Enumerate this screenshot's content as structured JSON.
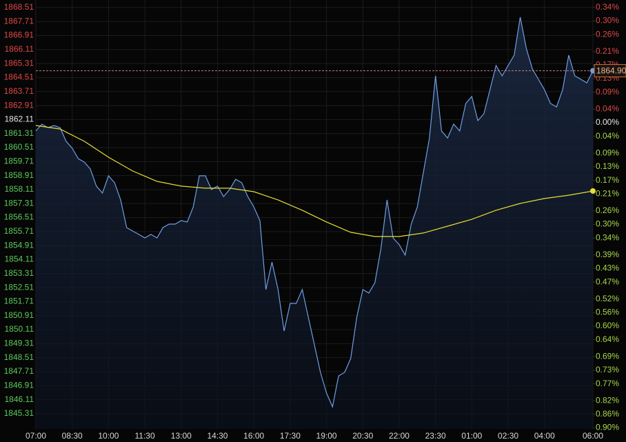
{
  "chart_data": {
    "type": "line",
    "x": [
      0,
      0.25,
      0.5,
      0.75,
      1,
      1.25,
      1.5,
      1.75,
      2,
      2.25,
      2.5,
      2.75,
      3,
      3.25,
      3.5,
      3.75,
      4,
      4.25,
      4.5,
      4.75,
      5,
      5.25,
      5.5,
      5.75,
      6,
      6.25,
      6.5,
      6.75,
      7,
      7.25,
      7.5,
      7.75,
      8,
      8.25,
      8.5,
      8.75,
      9,
      9.25,
      9.5,
      9.75,
      10,
      10.25,
      10.5,
      10.75,
      11,
      11.25,
      11.5,
      11.75,
      12,
      12.25,
      12.5,
      12.75,
      13,
      13.25,
      13.5,
      13.75,
      14,
      14.25,
      14.5,
      14.75,
      15,
      15.25,
      15.5,
      15.75,
      16,
      16.25,
      16.5,
      16.75,
      17,
      17.25,
      17.5,
      17.75,
      18,
      18.25,
      18.5,
      18.75,
      19,
      19.25,
      19.5,
      19.75,
      20,
      20.25,
      20.5,
      20.75,
      21,
      21.25,
      21.5,
      21.75,
      22,
      22.25,
      22.5,
      22.75,
      23
    ],
    "series": [
      {
        "color": "#6f9fe6",
        "values": [
          1861.46,
          1861.85,
          1861.65,
          1861.77,
          1861.65,
          1860.87,
          1860.47,
          1859.88,
          1859.68,
          1859.29,
          1858.31,
          1857.91,
          1858.9,
          1858.5,
          1857.52,
          1855.94,
          1855.74,
          1855.55,
          1855.35,
          1855.55,
          1855.35,
          1855.94,
          1856.14,
          1856.14,
          1856.34,
          1856.26,
          1857.12,
          1858.9,
          1858.9,
          1858.11,
          1858.31,
          1857.71,
          1858.11,
          1858.7,
          1858.5,
          1857.71,
          1857.12,
          1856.34,
          1852.4,
          1853.97,
          1852.4,
          1850.03,
          1851.61,
          1851.61,
          1852.4,
          1850.82,
          1849.25,
          1847.67,
          1846.49,
          1845.7,
          1847.47,
          1847.67,
          1848.46,
          1850.82,
          1852.4,
          1852.2,
          1852.79,
          1854.76,
          1857.52,
          1855.35,
          1854.96,
          1854.37,
          1856.14,
          1857.12,
          1859.09,
          1861.06,
          1864.61,
          1861.46,
          1861.06,
          1861.85,
          1861.46,
          1863.03,
          1863.43,
          1862.05,
          1862.44,
          1863.82,
          1865.2,
          1864.61,
          1865.2,
          1865.79,
          1867.96,
          1866.18,
          1865.0,
          1864.41,
          1863.82,
          1863.03,
          1862.83,
          1863.82,
          1865.79,
          1864.61,
          1864.41,
          1864.21,
          1864.9
        ]
      },
      {
        "color": "#e6e033",
        "x": [
          0,
          1,
          2,
          3,
          4,
          5,
          6,
          7,
          8,
          9,
          10,
          11,
          12,
          13,
          14,
          15,
          16,
          17,
          18,
          19,
          20,
          21,
          22,
          23
        ],
        "values": [
          1861.77,
          1861.57,
          1860.87,
          1859.96,
          1859.17,
          1858.58,
          1858.31,
          1858.19,
          1858.19,
          1857.99,
          1857.52,
          1856.93,
          1856.26,
          1855.67,
          1855.43,
          1855.43,
          1855.63,
          1856.02,
          1856.41,
          1856.93,
          1857.32,
          1857.6,
          1857.79,
          1858.03
        ]
      }
    ],
    "last_price": {
      "value": 1864.9,
      "label": "1864.90"
    },
    "xlim": [
      0,
      23
    ],
    "xticks": [
      {
        "value": 0,
        "label": "07:00"
      },
      {
        "value": 1.5,
        "label": "08:30"
      },
      {
        "value": 3,
        "label": "10:00"
      },
      {
        "value": 4.5,
        "label": "11:30"
      },
      {
        "value": 6,
        "label": "13:00"
      },
      {
        "value": 7.5,
        "label": "14:30"
      },
      {
        "value": 9,
        "label": "16:00"
      },
      {
        "value": 10.5,
        "label": "17:30"
      },
      {
        "value": 12,
        "label": "19:00"
      },
      {
        "value": 13.5,
        "label": "20:30"
      },
      {
        "value": 15,
        "label": "22:00"
      },
      {
        "value": 16.5,
        "label": "23:30"
      },
      {
        "value": 18,
        "label": "01:00"
      },
      {
        "value": 19.5,
        "label": "02:30"
      },
      {
        "value": 21,
        "label": "04:00"
      },
      {
        "value": 23,
        "label": "06:00"
      }
    ],
    "ylim": [
      1844.44,
      1868.94
    ],
    "yticks": [
      1868.51,
      1867.71,
      1866.91,
      1866.11,
      1865.31,
      1864.51,
      1863.71,
      1862.91,
      1862.11,
      1861.31,
      1860.51,
      1859.71,
      1858.91,
      1858.11,
      1857.31,
      1856.51,
      1855.71,
      1854.91,
      1854.11,
      1853.31,
      1852.51,
      1851.71,
      1850.91,
      1850.11,
      1849.31,
      1848.51,
      1847.71,
      1846.91,
      1846.11,
      1845.31
    ],
    "y2lim": [
      -0.903,
      0.362
    ],
    "y2ticks": [
      {
        "value": 0.34,
        "label": "0.34%"
      },
      {
        "value": 0.3,
        "label": "0.30%"
      },
      {
        "value": 0.26,
        "label": "0.26%"
      },
      {
        "value": 0.21,
        "label": "0.21%"
      },
      {
        "value": 0.17,
        "label": "0.17%"
      },
      {
        "value": 0.13,
        "label": "0.13%"
      },
      {
        "value": 0.09,
        "label": "0.09%"
      },
      {
        "value": 0.04,
        "label": "0.04%"
      },
      {
        "value": 0,
        "label": "0.00%"
      },
      {
        "value": -0.04,
        "label": "0.04%"
      },
      {
        "value": -0.09,
        "label": "0.09%"
      },
      {
        "value": -0.13,
        "label": "0.13%"
      },
      {
        "value": -0.17,
        "label": "0.17%"
      },
      {
        "value": -0.21,
        "label": "0.21%"
      },
      {
        "value": -0.26,
        "label": "0.26%"
      },
      {
        "value": -0.3,
        "label": "0.30%"
      },
      {
        "value": -0.34,
        "label": "0.34%"
      },
      {
        "value": -0.39,
        "label": "0.39%"
      },
      {
        "value": -0.43,
        "label": "0.43%"
      },
      {
        "value": -0.47,
        "label": "0.47%"
      },
      {
        "value": -0.52,
        "label": "0.52%"
      },
      {
        "value": -0.56,
        "label": "0.56%"
      },
      {
        "value": -0.6,
        "label": "0.60%"
      },
      {
        "value": -0.64,
        "label": "0.64%"
      },
      {
        "value": -0.69,
        "label": "0.69%"
      },
      {
        "value": -0.73,
        "label": "0.73%"
      },
      {
        "value": -0.77,
        "label": "0.77%"
      },
      {
        "value": -0.82,
        "label": "0.82%"
      },
      {
        "value": -0.86,
        "label": "0.86%"
      },
      {
        "value": -0.9,
        "label": "0.90%"
      }
    ],
    "grid": true
  }
}
